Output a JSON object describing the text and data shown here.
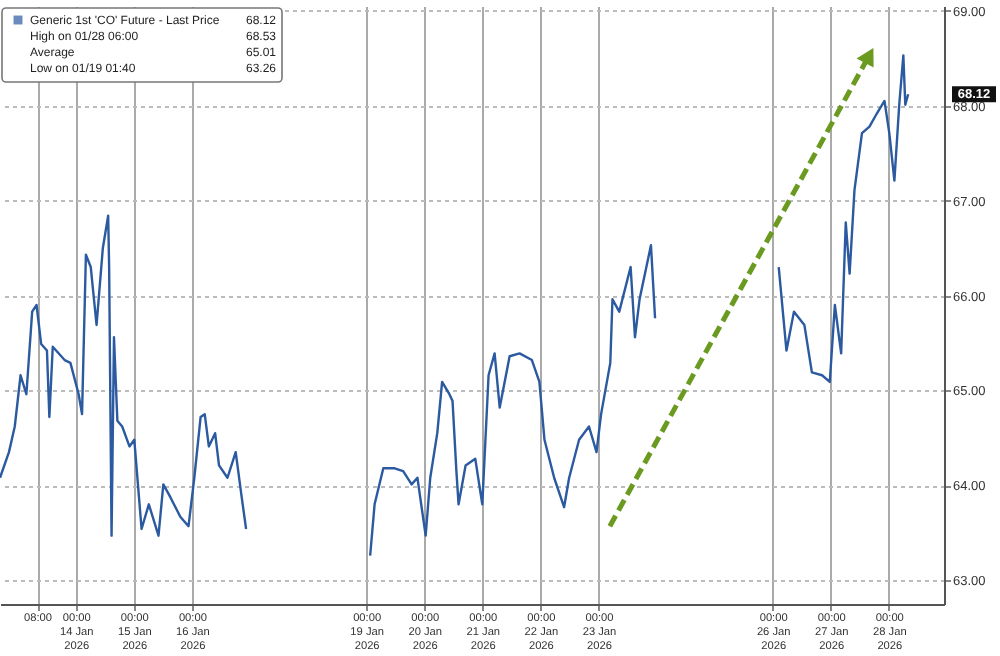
{
  "chart_data": {
    "type": "line",
    "series": [
      {
        "name": "Generic 1st 'CO' Future - Last Price",
        "color": "#2b5aa0",
        "x": [
          "2026-01-12T16:42",
          "2026-01-12T20:24",
          "2026-01-12T22:48",
          "2026-01-13T01:12",
          "2026-01-13T03:36",
          "2026-01-13T06:00",
          "2026-01-13T07:48",
          "2026-01-13T09:42",
          "2026-01-13T12:06",
          "2026-01-13T13:06",
          "2026-01-13T14:30",
          "2026-01-13T19:24",
          "2026-01-13T21:48",
          "2026-01-14T01:12",
          "2026-01-14T02:36",
          "2026-01-14T04:12",
          "2026-01-14T06:12",
          "2026-01-14T08:36",
          "2026-01-14T11:12",
          "2026-01-14T13:24",
          "2026-01-14T13:48",
          "2026-01-14T14:48",
          "2026-01-14T15:48",
          "2026-01-14T17:12",
          "2026-01-14T19:12",
          "2026-01-14T22:12",
          "2026-01-15T00:12",
          "2026-01-15T03:12",
          "2026-01-15T06:12",
          "2026-01-15T10:12",
          "2026-01-15T12:12",
          "2026-01-15T15:12",
          "2026-01-15T19:12",
          "2026-01-15T22:36",
          "2026-01-16T01:00",
          "2026-01-16T03:36",
          "2026-01-16T05:18",
          "2026-01-16T07:00",
          "2026-01-16T09:36",
          "2026-01-16T11:12",
          "2026-01-16T14:42",
          "2026-01-16T18:06",
          "2026-01-16T20:36",
          "2026-01-16T22:24",
          "2026-01-18T12:00",
          "2026-01-19T01:40",
          "2026-01-19T03:30",
          "2026-01-19T07:06",
          "2026-01-19T11:48",
          "2026-01-19T15:18",
          "2026-01-19T18:48",
          "2026-01-19T21:12",
          "2026-01-20T00:36",
          "2026-01-20T02:30",
          "2026-01-20T05:24",
          "2026-01-20T07:24",
          "2026-01-20T10:24",
          "2026-01-20T11:42",
          "2026-01-20T13:18",
          "2026-01-20T14:12",
          "2026-01-20T17:06",
          "2026-01-20T21:06",
          "2026-01-21T00:00",
          "2026-01-21T02:36",
          "2026-01-21T05:06",
          "2026-01-21T07:12",
          "2026-01-21T11:18",
          "2026-01-21T15:24",
          "2026-01-21T20:30",
          "2026-01-21T23:36",
          "2026-01-22T01:42",
          "2026-01-22T03:42",
          "2026-01-22T05:42",
          "2026-01-22T09:48",
          "2026-01-22T11:54",
          "2026-01-22T16:00",
          "2026-01-22T20:06",
          "2026-01-22T23:12",
          "2026-01-23T01:06",
          "2026-01-23T04:54",
          "2026-01-23T05:48",
          "2026-01-23T08:36",
          "2026-01-23T13:18",
          "2026-01-23T15:06",
          "2026-01-23T17:00",
          "2026-01-23T21:42",
          "2026-01-23T23:24",
          "2026-01-25T12:00",
          "2026-01-26T02:30",
          "2026-01-26T05:42",
          "2026-01-26T08:48",
          "2026-01-26T13:06",
          "2026-01-26T16:12",
          "2026-01-26T20:24",
          "2026-01-26T23:36",
          "2026-01-27T01:42",
          "2026-01-27T04:18",
          "2026-01-27T06:12",
          "2026-01-27T07:48",
          "2026-01-27T09:48",
          "2026-01-27T12:54",
          "2026-01-27T16:00",
          "2026-01-27T19:06",
          "2026-01-27T22:12",
          "2026-01-28T00:12",
          "2026-01-28T02:18",
          "2026-01-28T04:18",
          "2026-01-28T06:00",
          "2026-01-28T06:48",
          "2026-01-28T08:00"
        ],
        "values": [
          64.08,
          64.35,
          64.62,
          65.16,
          64.96,
          65.83,
          65.9,
          65.49,
          65.42,
          64.72,
          65.46,
          65.32,
          65.29,
          64.96,
          64.75,
          66.43,
          66.3,
          65.69,
          66.5,
          66.84,
          66.3,
          63.47,
          65.56,
          64.68,
          64.62,
          64.41,
          64.48,
          63.54,
          63.8,
          63.47,
          64.01,
          63.87,
          63.67,
          63.57,
          64.08,
          64.72,
          64.75,
          64.41,
          64.55,
          64.21,
          64.08,
          64.35,
          63.87,
          63.54,
          null,
          63.26,
          63.8,
          64.18,
          64.18,
          64.15,
          64.01,
          64.08,
          63.47,
          64.08,
          64.55,
          65.09,
          64.96,
          64.89,
          64.15,
          63.8,
          64.21,
          64.28,
          63.8,
          65.16,
          65.39,
          64.82,
          65.36,
          65.39,
          65.32,
          65.09,
          64.48,
          64.28,
          64.08,
          63.77,
          64.08,
          64.48,
          64.62,
          64.35,
          64.75,
          65.29,
          65.96,
          65.83,
          66.3,
          65.56,
          65.96,
          66.53,
          65.76,
          null,
          66.3,
          65.42,
          65.83,
          65.69,
          65.19,
          65.16,
          65.09,
          65.9,
          65.39,
          66.77,
          66.23,
          67.11,
          67.71,
          67.78,
          67.92,
          68.05,
          67.71,
          67.21,
          68.01,
          68.53,
          68.01,
          68.12
        ]
      }
    ],
    "xlim": [
      "2026-01-12T16:42",
      "2026-01-28T22:48"
    ],
    "xticks": [
      {
        "value": "2026-01-13T08:00",
        "label": "08:00"
      },
      {
        "value": "2026-01-14",
        "label": "00:00\n14 Jan 2026"
      },
      {
        "value": "2026-01-15",
        "label": "00:00\n15 Jan 2026"
      },
      {
        "value": "2026-01-16",
        "label": "00:00\n16 Jan 2026"
      },
      {
        "value": "2026-01-19",
        "label": "00:00\n19 Jan 2026"
      },
      {
        "value": "2026-01-20",
        "label": "00:00\n20 Jan 2026"
      },
      {
        "value": "2026-01-21",
        "label": "00:00\n21 Jan 2026"
      },
      {
        "value": "2026-01-22",
        "label": "00:00\n22 Jan 2026"
      },
      {
        "value": "2026-01-23",
        "label": "00:00\n23 Jan 2026"
      },
      {
        "value": "2026-01-26",
        "label": "00:00\n26 Jan 2026"
      },
      {
        "value": "2026-01-27",
        "label": "00:00\n27 Jan 2026"
      },
      {
        "value": "2026-01-28",
        "label": "00:00\n28 Jan 2026"
      }
    ],
    "ylim": [
      62.75,
      69.05
    ],
    "yticks": [
      {
        "value": 63,
        "label": "63.00"
      },
      {
        "value": 64,
        "label": "64.00"
      },
      {
        "value": 65,
        "label": "65.00"
      },
      {
        "value": 66,
        "label": "66.00"
      },
      {
        "value": 67,
        "label": "67.00"
      },
      {
        "value": 68,
        "label": "68.00"
      },
      {
        "value": 69,
        "label": "69.00"
      }
    ],
    "grid": true,
    "legend": "top left",
    "annotations": [
      "68.12",
      "High on 01/28 06:00",
      "68.53",
      "Average",
      "65.01",
      "Low on 01/19 01:40",
      "63.26",
      "68.12"
    ]
  }
}
